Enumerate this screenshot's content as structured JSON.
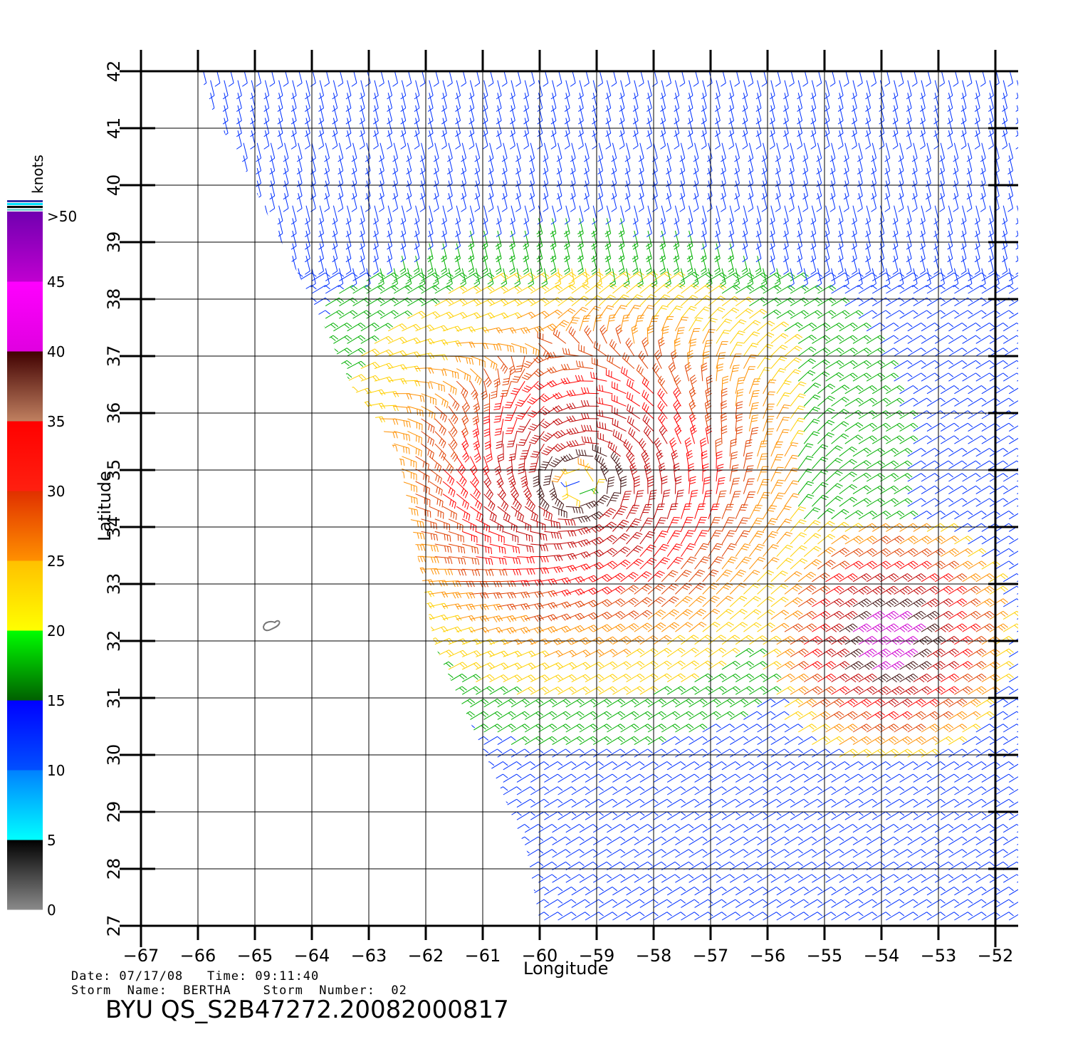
{
  "map": {
    "x_axis_label": "Longitude",
    "y_axis_label": "Latitude",
    "lon_ticks": [
      "-67",
      "-66",
      "-65",
      "-64",
      "-63",
      "-62",
      "-61",
      "-60",
      "-59",
      "-58",
      "-57",
      "-56",
      "-55",
      "-54",
      "-53",
      "-52"
    ],
    "lat_ticks": [
      "27",
      "28",
      "29",
      "30",
      "31",
      "32",
      "33",
      "34",
      "35",
      "36",
      "37",
      "38",
      "39",
      "40",
      "41",
      "42"
    ],
    "lon_range": [
      -67,
      -51.6
    ],
    "lat_range": [
      27,
      42
    ],
    "storm_center": {
      "lon": -59.3,
      "lat": 34.75
    },
    "second_max": {
      "lon": -54.0,
      "lat": 32.0
    },
    "island_label_free": true
  },
  "colorbar": {
    "units": "knots",
    "labels": [
      ">50",
      "45",
      "40",
      "35",
      "30",
      "25",
      "20",
      "15",
      "10",
      "5",
      "0"
    ],
    "bins": [
      {
        "from": 0,
        "to": 5,
        "top": "#000000",
        "bottom": "#8a8a8a"
      },
      {
        "from": 5,
        "to": 10,
        "top": "#0080ff",
        "bottom": "#00ffff"
      },
      {
        "from": 10,
        "to": 15,
        "top": "#0000ff",
        "bottom": "#0050ff"
      },
      {
        "from": 15,
        "to": 20,
        "top": "#00ff00",
        "bottom": "#006000"
      },
      {
        "from": 20,
        "to": 25,
        "top": "#ffc000",
        "bottom": "#ffff00"
      },
      {
        "from": 25,
        "to": 30,
        "top": "#e03000",
        "bottom": "#ff9000"
      },
      {
        "from": 30,
        "to": 35,
        "top": "#ff0000",
        "bottom": "#ff2010"
      },
      {
        "from": 35,
        "to": 40,
        "top": "#400000",
        "bottom": "#c08060"
      },
      {
        "from": 40,
        "to": 45,
        "top": "#ff00ff",
        "bottom": "#e000e0"
      },
      {
        "from": 45,
        "to": 50,
        "top": "#7000b0",
        "bottom": "#c000d0"
      }
    ]
  },
  "caption": {
    "line1": "Date: 07/17/08   Time: 09:11:40",
    "line2": "Storm  Name:  BERTHA    Storm  Number:  02",
    "file": "BYU  QS_S2B47272.20082000817"
  }
}
